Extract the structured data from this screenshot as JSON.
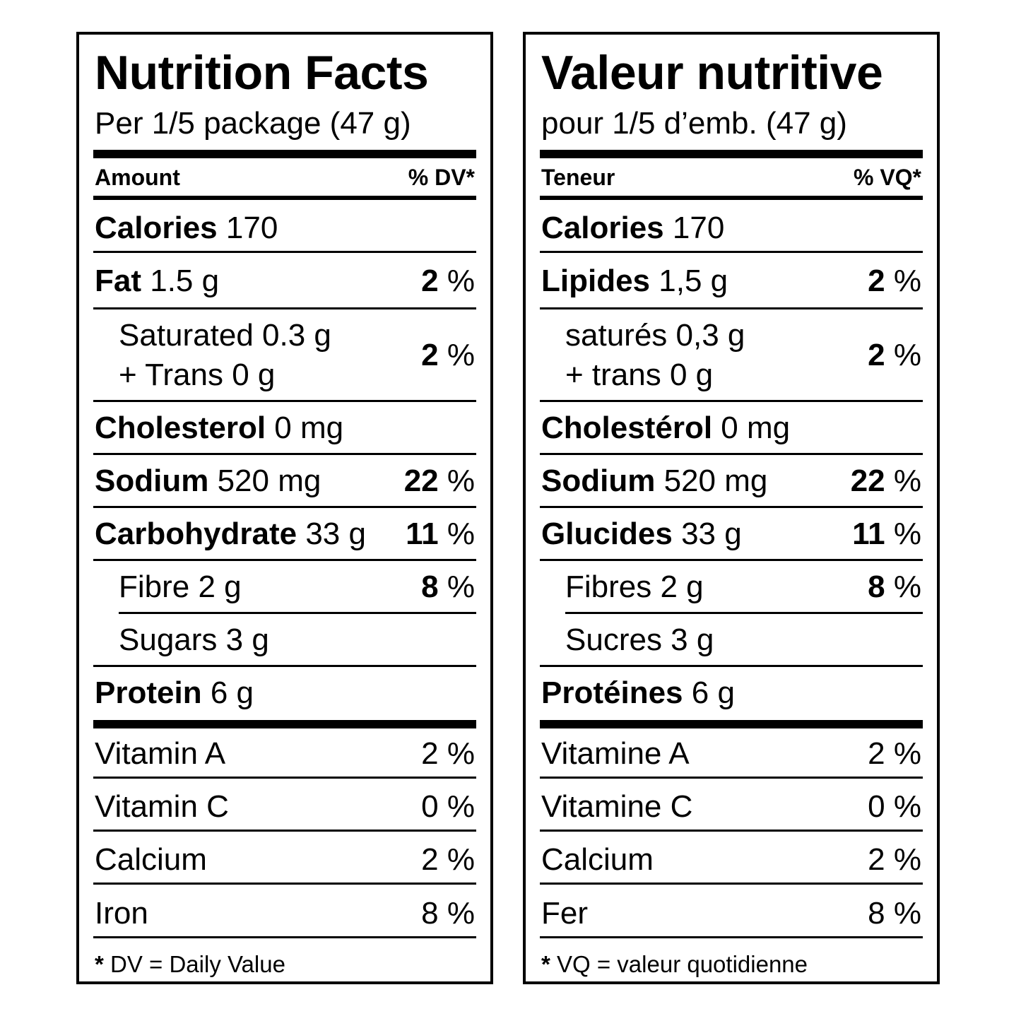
{
  "en": {
    "title": "Nutrition Facts",
    "serving": "Per 1/5 package (47 g)",
    "header_amount": "Amount",
    "header_dv": "% DV*",
    "calories": {
      "name": "Calories",
      "amount": "170"
    },
    "fat": {
      "name": "Fat",
      "amount": "1.5 g",
      "dv_num": "2",
      "dv_pct": "%"
    },
    "saturated": {
      "line1": "Saturated 0.3 g",
      "line2": "+ Trans  0 g",
      "dv_num": "2",
      "dv_pct": "%"
    },
    "cholesterol": {
      "name": "Cholesterol",
      "amount": "0 mg"
    },
    "sodium": {
      "name": "Sodium",
      "amount": "520 mg",
      "dv_num": "22",
      "dv_pct": "%"
    },
    "carbohydrate": {
      "name": "Carbohydrate",
      "amount": "33 g",
      "dv_num": "11",
      "dv_pct": "%"
    },
    "fibre": {
      "name": "Fibre 2 g",
      "dv_num": "8",
      "dv_pct": "%"
    },
    "sugars": {
      "name": "Sugars 3 g"
    },
    "protein": {
      "name": "Protein",
      "amount": "6 g"
    },
    "vitamin_a": {
      "name": "Vitamin A",
      "dv": "2 %"
    },
    "vitamin_c": {
      "name": "Vitamin C",
      "dv": "0 %"
    },
    "calcium": {
      "name": "Calcium",
      "dv": "2 %"
    },
    "iron": {
      "name": "Iron",
      "dv": "8 %"
    },
    "footnote_star": "*",
    "footnote": "DV = Daily Value"
  },
  "fr": {
    "title": "Valeur nutritive",
    "serving": "pour 1/5 d’emb. (47 g)",
    "header_amount": "Teneur",
    "header_dv": "% VQ*",
    "calories": {
      "name": "Calories",
      "amount": "170"
    },
    "fat": {
      "name": "Lipides",
      "amount": "1,5 g",
      "dv_num": "2",
      "dv_pct": "%"
    },
    "saturated": {
      "line1": "saturés 0,3 g",
      "line2": "+ trans 0 g",
      "dv_num": "2",
      "dv_pct": "%"
    },
    "cholesterol": {
      "name": "Cholestérol",
      "amount": "0 mg"
    },
    "sodium": {
      "name": "Sodium",
      "amount": "520 mg",
      "dv_num": "22",
      "dv_pct": "%"
    },
    "carbohydrate": {
      "name": "Glucides",
      "amount": "33 g",
      "dv_num": "11",
      "dv_pct": "%"
    },
    "fibre": {
      "name": "Fibres 2 g",
      "dv_num": "8",
      "dv_pct": "%"
    },
    "sugars": {
      "name": "Sucres 3 g"
    },
    "protein": {
      "name": "Protéines",
      "amount": "6 g"
    },
    "vitamin_a": {
      "name": "Vitamine A",
      "dv": "2 %"
    },
    "vitamin_c": {
      "name": "Vitamine C",
      "dv": "0 %"
    },
    "calcium": {
      "name": "Calcium",
      "dv": "2 %"
    },
    "iron": {
      "name": "Fer",
      "dv": "8 %"
    },
    "footnote_star": "*",
    "footnote": "VQ = valeur quotidienne"
  }
}
